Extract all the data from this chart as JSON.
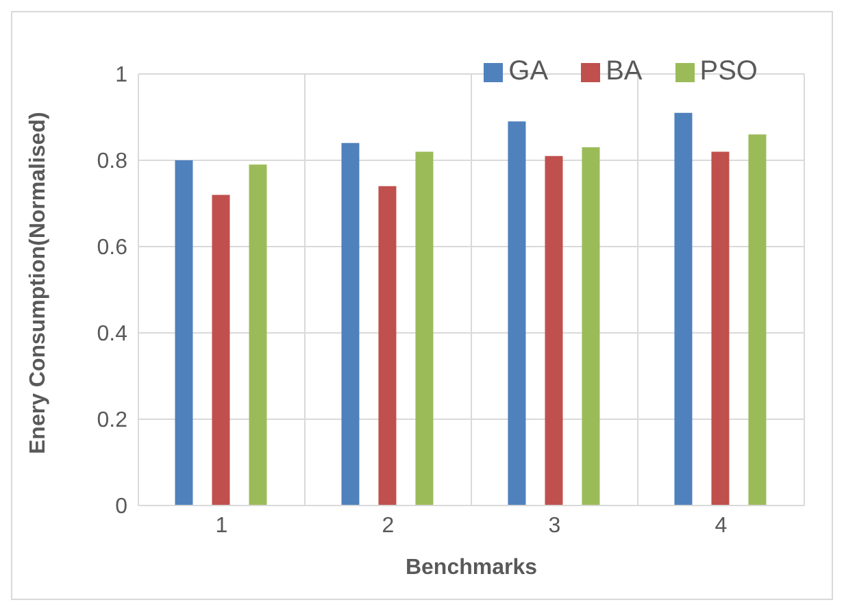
{
  "chart_data": {
    "type": "bar",
    "xlabel": "Benchmarks",
    "ylabel": "Enery Consumption(Normalised)",
    "categories": [
      "1",
      "2",
      "3",
      "4"
    ],
    "series": [
      {
        "name": "GA",
        "color": "#4f81bd",
        "values": [
          0.8,
          0.84,
          0.89,
          0.91
        ]
      },
      {
        "name": "BA",
        "color": "#c0504d",
        "values": [
          0.72,
          0.74,
          0.81,
          0.82
        ]
      },
      {
        "name": "PSO",
        "color": "#9bbb59",
        "values": [
          0.79,
          0.82,
          0.83,
          0.86
        ]
      }
    ],
    "ylim": [
      0,
      1
    ],
    "yticks": [
      0,
      0.2,
      0.4,
      0.6,
      0.8,
      1
    ],
    "grid": true,
    "legend": "top right"
  }
}
